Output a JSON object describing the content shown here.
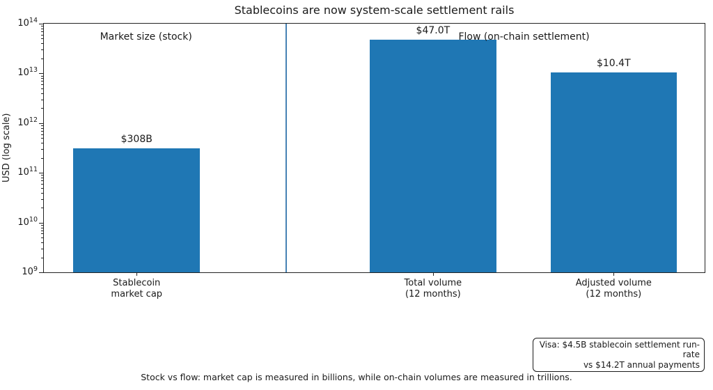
{
  "figure": {
    "title": "Stablecoins are now system-scale settlement rails",
    "caption": "Stock vs flow: market cap is measured in billions, while on-chain volumes are measured in trillions.",
    "visa_box": {
      "line1": "Visa: $4.5B stablecoin settlement run-rate",
      "line2": "vs $14.2T annual payments"
    }
  },
  "chart_data": {
    "type": "bar",
    "title": "Stablecoins are now system-scale settlement rails",
    "ylabel": "USD (log scale)",
    "yscale": "log",
    "ylim": [
      1000000000,
      100000000000000
    ],
    "ytick_exponents": [
      9,
      10,
      11,
      12,
      13,
      14
    ],
    "grid": false,
    "legend_position": "none",
    "categories": [
      [
        "Stablecoin",
        "market cap"
      ],
      [
        "Total volume",
        "(12 months)"
      ],
      [
        "Adjusted volume",
        "(12 months)"
      ]
    ],
    "values": [
      308000000000,
      47000000000000,
      10400000000000
    ],
    "bar_labels": [
      "$308B",
      "$47.0T",
      "$10.4T"
    ],
    "bar_color": "#1f77b4",
    "panel_annotations": [
      "Market size (stock)",
      "Flow (on-chain settlement)"
    ],
    "divider_color": "#4682b4",
    "spine_color": "#222222"
  }
}
